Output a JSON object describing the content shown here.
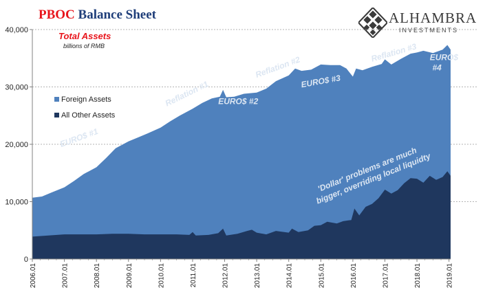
{
  "title": {
    "part1": "PBOC",
    "part2": "Balance Sheet"
  },
  "logo": {
    "name": "ALHAMBRA",
    "sub": "INVESTMENTS"
  },
  "colors": {
    "foreign": "#4f81bd",
    "other": "#1f375e",
    "title_red": "#e8141b",
    "title_blue": "#1f3e79",
    "annotation": "#dce6f2"
  },
  "chart_data": {
    "type": "area",
    "stacked": true,
    "title": "Total Assets",
    "subtitle": "billions of RMB",
    "xlabel": "",
    "ylabel": "",
    "ylim": [
      0,
      40000
    ],
    "yticks": [
      0,
      10000,
      20000,
      30000,
      40000
    ],
    "ytick_labels": [
      "0",
      "10,000",
      "20,000",
      "30,000",
      "40,000"
    ],
    "xlim": [
      2006.0,
      2019.05
    ],
    "xticks": [
      2006,
      2007,
      2008,
      2009,
      2010,
      2011,
      2012,
      2013,
      2014,
      2015,
      2016,
      2017,
      2018,
      2019
    ],
    "xtick_labels": [
      "2006.01",
      "2007.01",
      "2008.01",
      "2009.01",
      "2010.01",
      "2011.01",
      "2012.01",
      "2013.01",
      "2014.01",
      "2015.01",
      "2016.01",
      "2017.01",
      "2018.01",
      "2019.01"
    ],
    "grid": "horizontal dotted at 20000 and 30000",
    "legend_position": "left",
    "series": [
      {
        "name": "Foreign Assets",
        "color": "#4f81bd",
        "note": "stacked on top of All Other Assets; total assets shown",
        "total_points": [
          [
            2006.0,
            10700
          ],
          [
            2006.3,
            10900
          ],
          [
            2006.6,
            11600
          ],
          [
            2007.0,
            12500
          ],
          [
            2007.3,
            13600
          ],
          [
            2007.6,
            14800
          ],
          [
            2008.0,
            16000
          ],
          [
            2008.3,
            17600
          ],
          [
            2008.6,
            19300
          ],
          [
            2009.0,
            20500
          ],
          [
            2009.3,
            21200
          ],
          [
            2009.6,
            21900
          ],
          [
            2010.0,
            22900
          ],
          [
            2010.3,
            24000
          ],
          [
            2010.6,
            25000
          ],
          [
            2011.0,
            26200
          ],
          [
            2011.3,
            27200
          ],
          [
            2011.6,
            28000
          ],
          [
            2011.85,
            28300
          ],
          [
            2011.95,
            29500
          ],
          [
            2012.05,
            28200
          ],
          [
            2012.3,
            28300
          ],
          [
            2012.6,
            28800
          ],
          [
            2013.0,
            29000
          ],
          [
            2013.3,
            29700
          ],
          [
            2013.6,
            31000
          ],
          [
            2014.0,
            32000
          ],
          [
            2014.2,
            33200
          ],
          [
            2014.4,
            32800
          ],
          [
            2014.7,
            33000
          ],
          [
            2015.0,
            33900
          ],
          [
            2015.3,
            33800
          ],
          [
            2015.6,
            33800
          ],
          [
            2015.8,
            33200
          ],
          [
            2016.0,
            31800
          ],
          [
            2016.1,
            33200
          ],
          [
            2016.3,
            32900
          ],
          [
            2016.6,
            33500
          ],
          [
            2016.9,
            34000
          ],
          [
            2017.0,
            34800
          ],
          [
            2017.2,
            33900
          ],
          [
            2017.5,
            34900
          ],
          [
            2017.8,
            35800
          ],
          [
            2018.0,
            36000
          ],
          [
            2018.2,
            36300
          ],
          [
            2018.5,
            35900
          ],
          [
            2018.8,
            36500
          ],
          [
            2018.95,
            37300
          ],
          [
            2019.05,
            36500
          ]
        ]
      },
      {
        "name": "All Other Assets",
        "color": "#1f375e",
        "points": [
          [
            2006.0,
            3900
          ],
          [
            2006.5,
            4100
          ],
          [
            2007.0,
            4300
          ],
          [
            2007.5,
            4300
          ],
          [
            2008.0,
            4300
          ],
          [
            2008.5,
            4400
          ],
          [
            2009.0,
            4400
          ],
          [
            2009.5,
            4300
          ],
          [
            2010.0,
            4300
          ],
          [
            2010.5,
            4300
          ],
          [
            2010.9,
            4200
          ],
          [
            2011.0,
            4700
          ],
          [
            2011.1,
            4100
          ],
          [
            2011.5,
            4200
          ],
          [
            2011.8,
            4500
          ],
          [
            2011.95,
            5300
          ],
          [
            2012.05,
            4100
          ],
          [
            2012.4,
            4400
          ],
          [
            2012.7,
            4900
          ],
          [
            2012.85,
            5100
          ],
          [
            2013.0,
            4600
          ],
          [
            2013.3,
            4300
          ],
          [
            2013.6,
            4900
          ],
          [
            2014.0,
            4600
          ],
          [
            2014.1,
            5300
          ],
          [
            2014.3,
            4700
          ],
          [
            2014.6,
            5000
          ],
          [
            2014.8,
            5800
          ],
          [
            2015.0,
            5900
          ],
          [
            2015.2,
            6500
          ],
          [
            2015.5,
            6200
          ],
          [
            2015.7,
            6600
          ],
          [
            2015.95,
            6800
          ],
          [
            2016.05,
            8800
          ],
          [
            2016.2,
            7600
          ],
          [
            2016.4,
            9100
          ],
          [
            2016.6,
            9600
          ],
          [
            2016.8,
            10600
          ],
          [
            2017.0,
            12100
          ],
          [
            2017.2,
            11400
          ],
          [
            2017.4,
            12000
          ],
          [
            2017.6,
            13200
          ],
          [
            2017.8,
            14100
          ],
          [
            2018.0,
            14000
          ],
          [
            2018.2,
            13300
          ],
          [
            2018.4,
            14500
          ],
          [
            2018.6,
            13800
          ],
          [
            2018.8,
            14300
          ],
          [
            2018.95,
            15300
          ],
          [
            2019.05,
            14500
          ]
        ]
      }
    ],
    "annotations": [
      {
        "text": "EURO$ #1",
        "x": 2006.9,
        "y": 19500,
        "angle": -20
      },
      {
        "text": "Reflation #1",
        "x": 2010.2,
        "y": 26600,
        "angle": -26
      },
      {
        "text": "EURO$ #2",
        "x": 2011.8,
        "y": 27000,
        "angle": 0
      },
      {
        "text": "Reflation #2",
        "x": 2013.0,
        "y": 31600,
        "angle": -20
      },
      {
        "text": "EURO$ #3",
        "x": 2014.4,
        "y": 29900,
        "angle": -10
      },
      {
        "text": "Reflation #3",
        "x": 2016.6,
        "y": 34400,
        "angle": -16
      },
      {
        "text": "EURO$",
        "x": 2018.4,
        "y": 34700,
        "angle": 0
      },
      {
        "text": "#4",
        "x": 2018.48,
        "y": 32900,
        "angle": 0
      },
      {
        "text": "'Dollar' problems are much",
        "x": 2014.95,
        "y": 11700,
        "angle": -22
      },
      {
        "text": "bigger, overriding local liquidty",
        "x": 2014.9,
        "y": 9600,
        "angle": -22
      }
    ]
  }
}
